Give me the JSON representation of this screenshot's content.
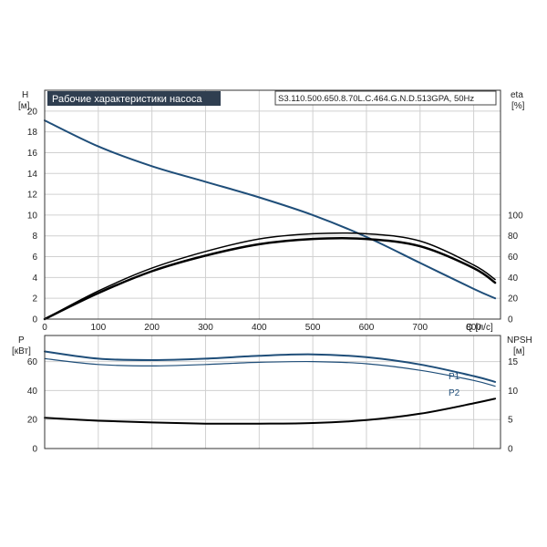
{
  "chart_data": {
    "type": "line",
    "title": "Рабочие характеристики насоса",
    "model": "S3.110.500.650.8.70L.C.464.G.N.D.513GPA, 50Hz",
    "colors": {
      "title_bg": "#2f3e50",
      "title_fg": "#ffffff",
      "blue": "#1f4e79",
      "black": "#000000",
      "grid": "#d0d0d0"
    },
    "grid": true,
    "top_plot": {
      "xlabel": "Q [л/с]",
      "ylabel_left": "H",
      "ylabel_left_unit": "[м]",
      "ylabel_right": "eta",
      "ylabel_right_unit": "[%]",
      "xlim": [
        0,
        850
      ],
      "ylim_left": [
        0,
        22
      ],
      "ylim_right": [
        0,
        220
      ],
      "x_ticks": [
        "0",
        "100",
        "200",
        "300",
        "400",
        "500",
        "600",
        "700",
        "800"
      ],
      "y_left_ticks": [
        "0",
        "2",
        "4",
        "6",
        "8",
        "10",
        "12",
        "14",
        "16",
        "18",
        "20"
      ],
      "y_right_ticks": [
        "0",
        "20",
        "40",
        "60",
        "80",
        "100"
      ],
      "series": [
        {
          "axis": "left",
          "color": "#1f4e79",
          "width": 2,
          "x": [
            0,
            100,
            200,
            300,
            400,
            500,
            600,
            700,
            800,
            840
          ],
          "y": [
            19.1,
            16.6,
            14.7,
            13.2,
            11.7,
            10.0,
            7.9,
            5.4,
            2.9,
            2.0
          ]
        },
        {
          "axis": "right",
          "color": "#000000",
          "width": 1.5,
          "x": [
            0,
            100,
            200,
            300,
            400,
            500,
            600,
            700,
            800,
            840
          ],
          "y": [
            0,
            27,
            49,
            65,
            77,
            82,
            82,
            75,
            52,
            38
          ]
        },
        {
          "axis": "right",
          "color": "#000000",
          "width": 2.5,
          "x": [
            0,
            100,
            200,
            300,
            400,
            500,
            600,
            700,
            800,
            840
          ],
          "y": [
            0,
            25,
            46,
            61,
            72,
            77,
            77,
            70,
            49,
            35
          ]
        }
      ]
    },
    "bottom_plot": {
      "ylabel_left": "P",
      "ylabel_left_unit": "[кВт]",
      "ylabel_right": "NPSH",
      "ylabel_right_unit": "[м]",
      "xlim": [
        0,
        850
      ],
      "ylim_left": [
        0,
        78
      ],
      "ylim_right": [
        0,
        19.5
      ],
      "y_left_ticks": [
        "0",
        "20",
        "40",
        "60"
      ],
      "y_right_ticks": [
        "0",
        "5",
        "10",
        "15"
      ],
      "series": [
        {
          "name": "P1",
          "axis": "left",
          "color": "#1f4e79",
          "width": 2,
          "x": [
            0,
            100,
            200,
            300,
            400,
            500,
            600,
            700,
            800,
            840
          ],
          "y": [
            67,
            62,
            61,
            62,
            64,
            65,
            63,
            58,
            50,
            46
          ]
        },
        {
          "name": "P2",
          "axis": "left",
          "color": "#1f4e79",
          "width": 1.2,
          "x": [
            0,
            100,
            200,
            300,
            400,
            500,
            600,
            700,
            800,
            840
          ],
          "y": [
            62,
            58,
            57,
            58,
            59.5,
            60,
            58.5,
            54,
            47,
            43
          ]
        },
        {
          "axis": "right",
          "color": "#000000",
          "width": 2,
          "x": [
            0,
            100,
            200,
            300,
            400,
            500,
            600,
            700,
            800,
            840
          ],
          "y": [
            5.3,
            4.8,
            4.5,
            4.3,
            4.3,
            4.4,
            4.9,
            6.0,
            7.8,
            8.6
          ]
        }
      ]
    }
  }
}
